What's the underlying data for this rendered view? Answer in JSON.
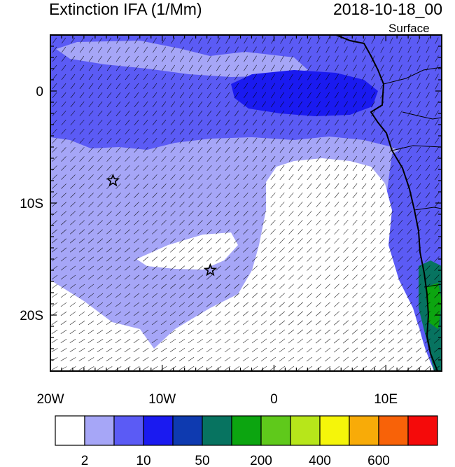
{
  "title": "Extinction IFA (1/Mm)",
  "datetime": "2018-10-18_00",
  "level": "Surface",
  "y_axis": {
    "ticks": [
      {
        "label": "0",
        "lat": 0
      },
      {
        "label": "10S",
        "lat": -10
      },
      {
        "label": "20S",
        "lat": -20
      }
    ]
  },
  "x_axis": {
    "ticks": [
      {
        "label": "20W",
        "lon": -20
      },
      {
        "label": "10W",
        "lon": -10
      },
      {
        "label": "0",
        "lon": 0
      },
      {
        "label": "10E",
        "lon": 10
      }
    ]
  },
  "extent": {
    "lon": [
      -20,
      15
    ],
    "lat": [
      -25,
      5
    ]
  },
  "colorbar": {
    "colors": [
      "#ffffff",
      "#a6a6f7",
      "#5b5bf5",
      "#1a1af0",
      "#0e3ab0",
      "#077360",
      "#0ca510",
      "#5fc91b",
      "#b7e61a",
      "#f5f50a",
      "#f8ab08",
      "#f86208",
      "#f50a0a"
    ],
    "labels": [
      {
        "text": "2",
        "index": 1
      },
      {
        "text": "10",
        "index": 3
      },
      {
        "text": "50",
        "index": 5
      },
      {
        "text": "200",
        "index": 7
      },
      {
        "text": "400",
        "index": 9
      },
      {
        "text": "600",
        "index": 11
      }
    ]
  },
  "markers": [
    {
      "name": "star",
      "lon": -14.4,
      "lat": -8.0
    },
    {
      "name": "star",
      "lon": -5.7,
      "lat": -16.0
    }
  ]
}
